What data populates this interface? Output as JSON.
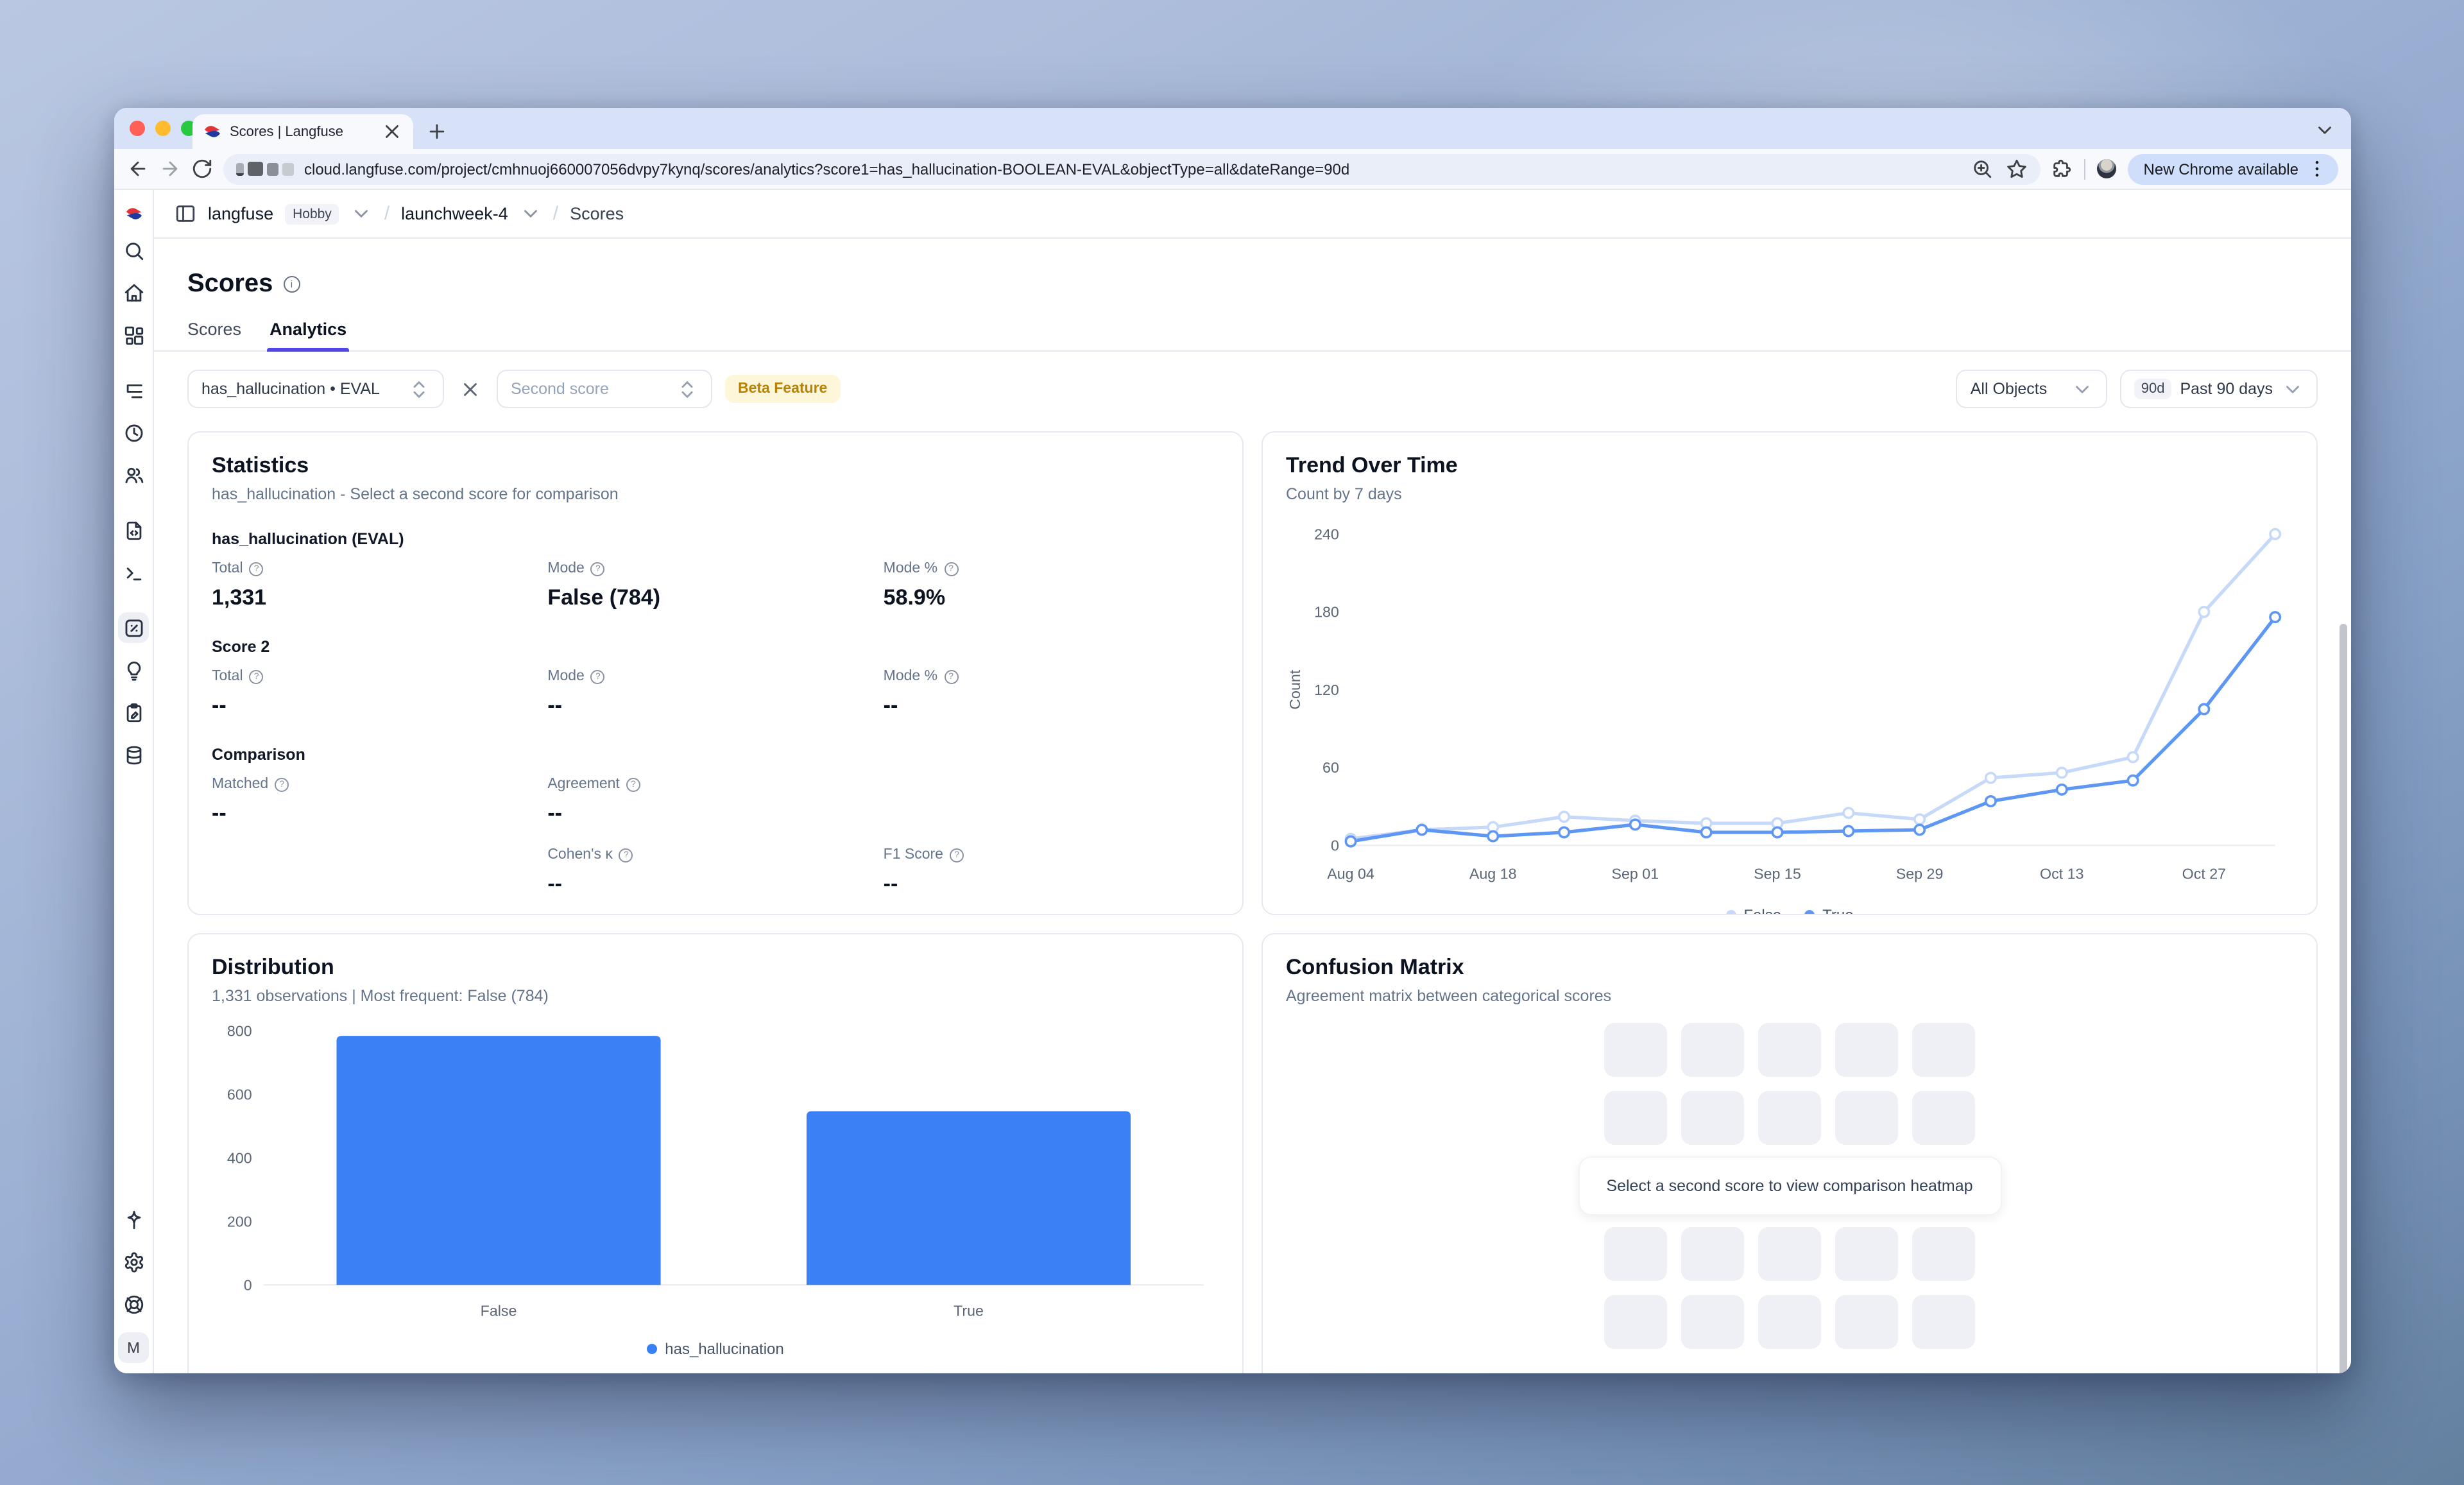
{
  "browser": {
    "tab": {
      "title": "Scores | Langfuse"
    },
    "url": "cloud.langfuse.com/project/cmhnuoj660007056dvpy7kynq/scores/analytics?score1=has_hallucination-BOOLEAN-EVAL&objectType=all&dateRange=90d",
    "new_chrome_label": "New Chrome available"
  },
  "header": {
    "org": "langfuse",
    "plan_badge": "Hobby",
    "project": "launchweek-4",
    "section": "Scores"
  },
  "sidebar": {
    "groups": [
      [
        "search",
        "home",
        "dashboards"
      ],
      [
        "tracing",
        "sessions",
        "users"
      ],
      [
        "prompts",
        "playground"
      ],
      [
        "scores",
        "evals",
        "annotation",
        "datasets"
      ]
    ],
    "active": "scores",
    "bottom": [
      "upgrade",
      "settings",
      "support"
    ],
    "profile_initial": "M"
  },
  "page": {
    "title": "Scores",
    "tabs": [
      {
        "label": "Scores",
        "active": false
      },
      {
        "label": "Analytics",
        "active": true
      }
    ],
    "filters": {
      "score1": "has_hallucination • EVAL",
      "score2_placeholder": "Second score",
      "beta_badge": "Beta Feature",
      "object_filter": "All Objects",
      "date_badge": "90d",
      "date_label": "Past 90 days"
    }
  },
  "statistics": {
    "title": "Statistics",
    "subtitle": "has_hallucination - Select a second score for comparison",
    "sections": [
      {
        "heading": "has_hallucination (EVAL)",
        "rows": [
          [
            {
              "label": "Total",
              "value": "1,331"
            },
            {
              "label": "Mode",
              "value": "False (784)"
            },
            {
              "label": "Mode %",
              "value": "58.9%"
            }
          ]
        ]
      },
      {
        "heading": "Score 2",
        "rows": [
          [
            {
              "label": "Total",
              "value": "--"
            },
            {
              "label": "Mode",
              "value": "--"
            },
            {
              "label": "Mode %",
              "value": "--"
            }
          ]
        ]
      },
      {
        "heading": "Comparison",
        "rows": [
          [
            {
              "label": "Matched",
              "value": "--"
            },
            {
              "label": "Agreement",
              "value": "--"
            },
            null
          ],
          [
            null,
            {
              "label": "Cohen's κ",
              "value": "--"
            },
            {
              "label": "F1 Score",
              "value": "--"
            }
          ]
        ]
      }
    ]
  },
  "panels": {
    "trend": {
      "title": "Trend Over Time",
      "subtitle": "Count by 7 days"
    },
    "distribution": {
      "title": "Distribution",
      "subtitle": "1,331 observations | Most frequent: False (784)"
    },
    "confusion": {
      "title": "Confusion Matrix",
      "subtitle": "Agreement matrix between categorical scores",
      "placeholder": "Select a second score to view comparison heatmap"
    }
  },
  "chart_data": [
    {
      "id": "trend",
      "type": "line",
      "title": "Trend Over Time",
      "subtitle": "Count by 7 days",
      "ylabel": "Count",
      "ylim": [
        0,
        240
      ],
      "yticks": [
        0,
        60,
        120,
        180,
        240
      ],
      "x": [
        "Aug 04",
        "Aug 11",
        "Aug 18",
        "Aug 25",
        "Sep 01",
        "Sep 08",
        "Sep 15",
        "Sep 22",
        "Sep 29",
        "Oct 06",
        "Oct 13",
        "Oct 20",
        "Oct 27",
        "Nov 03"
      ],
      "xticks_shown": [
        "Aug 04",
        "Aug 18",
        "Sep 01",
        "Sep 15",
        "Sep 29",
        "Oct 13",
        "Oct 27"
      ],
      "series": [
        {
          "name": "False",
          "color": "#c7d9f8",
          "values": [
            5,
            12,
            14,
            22,
            19,
            17,
            17,
            25,
            20,
            52,
            56,
            68,
            180,
            240
          ]
        },
        {
          "name": "True",
          "color": "#5e97f3",
          "values": [
            3,
            12,
            7,
            10,
            16,
            10,
            10,
            11,
            12,
            34,
            43,
            50,
            105,
            176
          ]
        }
      ],
      "legend_position": "bottom",
      "grid": false
    },
    {
      "id": "distribution",
      "type": "bar",
      "title": "Distribution",
      "categories": [
        "False",
        "True"
      ],
      "values": [
        784,
        547
      ],
      "series_name": "has_hallucination",
      "bar_color": "#3c80f6",
      "ylim": [
        0,
        800
      ],
      "yticks": [
        0,
        200,
        400,
        600,
        800
      ],
      "legend_position": "bottom",
      "grid": false
    }
  ],
  "colors": {
    "accent": "#4f46e5",
    "series_false": "#c7d9f8",
    "series_true": "#5e97f3",
    "bar_blue": "#3c80f6"
  }
}
